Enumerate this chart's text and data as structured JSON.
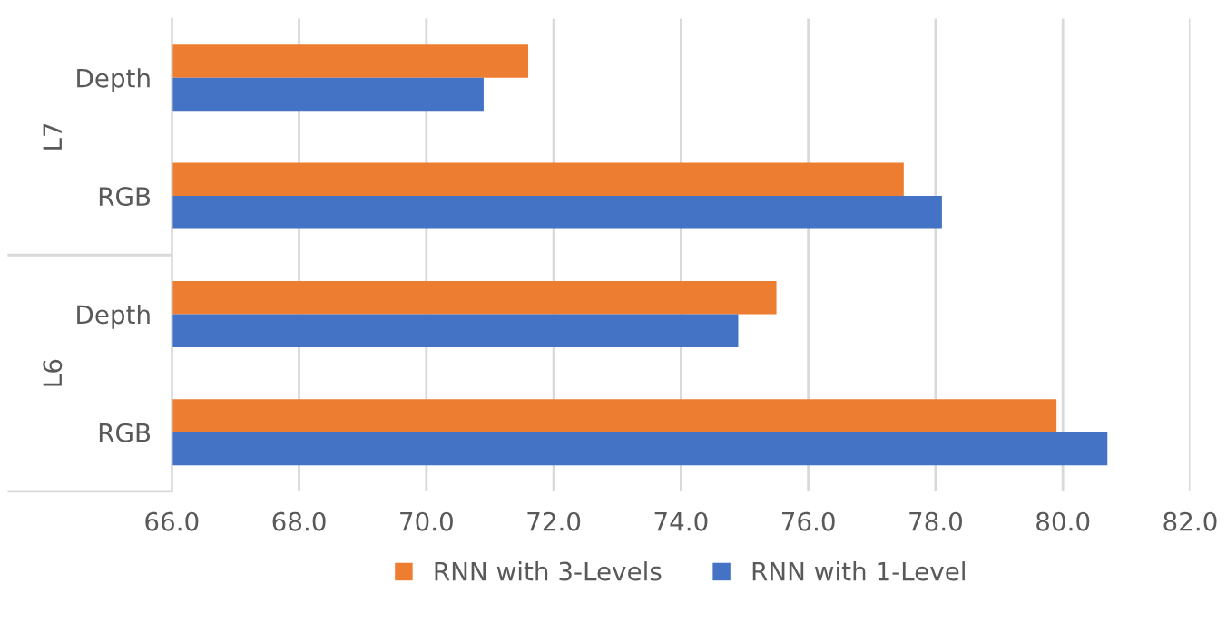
{
  "chart_data": {
    "type": "bar",
    "orientation": "horizontal",
    "categories": [
      "Depth",
      "RGB",
      "Depth",
      "RGB"
    ],
    "annotations": [
      "L7",
      "L6"
    ],
    "series": [
      {
        "name": "RNN with 3-Levels",
        "color": "#ed7d31",
        "values": [
          71.6,
          77.5,
          75.5,
          79.9
        ]
      },
      {
        "name": "RNN with 1-Level",
        "color": "#4472c4",
        "values": [
          70.9,
          78.1,
          74.9,
          80.7
        ]
      }
    ],
    "xlim": [
      66,
      82
    ],
    "xticks": [
      {
        "value": 66,
        "label": "66.0"
      },
      {
        "value": 68,
        "label": "68.0"
      },
      {
        "value": 70,
        "label": "70.0"
      },
      {
        "value": 72,
        "label": "72.0"
      },
      {
        "value": 74,
        "label": "74.0"
      },
      {
        "value": 76,
        "label": "76.0"
      },
      {
        "value": 78,
        "label": "78.0"
      },
      {
        "value": 80,
        "label": "80.0"
      },
      {
        "value": 82,
        "label": "82.0"
      }
    ],
    "grid": "x",
    "legend": "bottom"
  }
}
